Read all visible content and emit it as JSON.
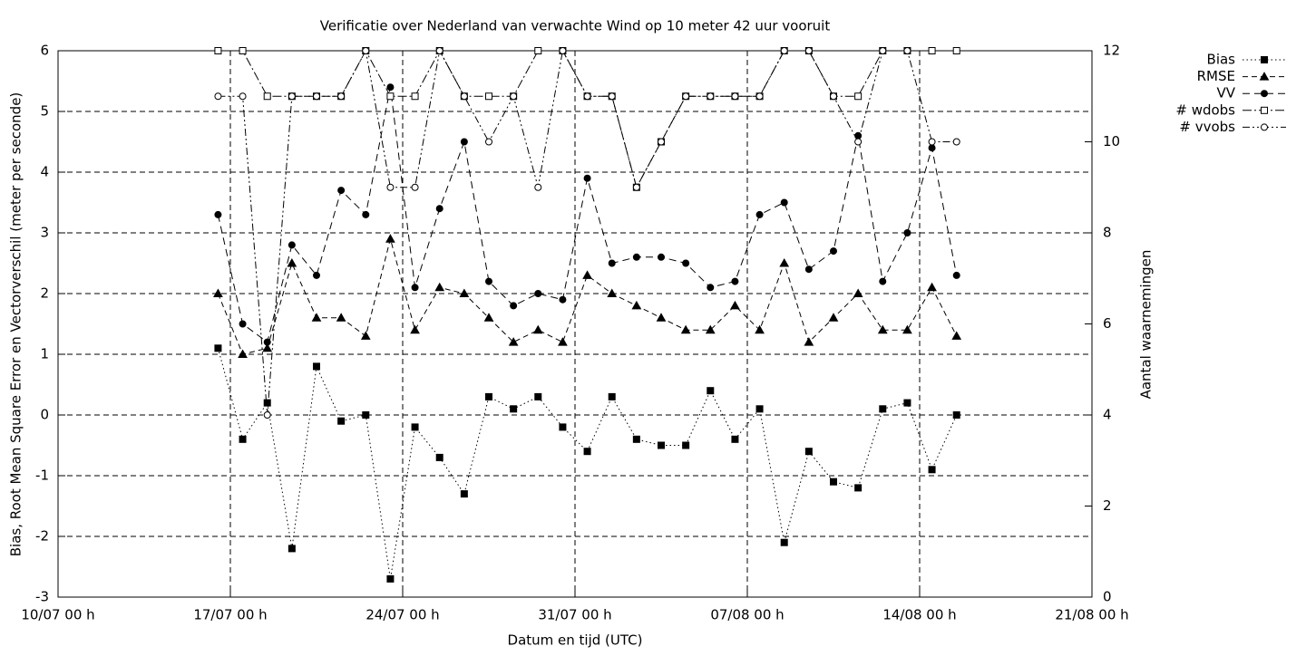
{
  "chart_data": {
    "type": "line",
    "title": "Verificatie over Nederland van verwachte Wind op 10 meter 42 uur vooruit",
    "xlabel": "Datum en tijd (UTC)",
    "ylabel": "Bias, Root Mean Square Error en Vectorverschil (meter per seconde)",
    "y2label": "Aantal waarnemingen",
    "x": [
      6.5,
      7.5,
      8.5,
      9.5,
      10.5,
      11.5,
      12.5,
      13.5,
      14.5,
      15.5,
      16.5,
      17.5,
      18.5,
      19.5,
      20.5,
      21.5,
      22.5,
      23.5,
      24.5,
      25.5,
      26.5,
      27.5,
      28.5,
      29.5,
      30.5,
      31.5,
      32.5,
      33.5,
      34.5,
      35.5,
      36.5
    ],
    "xlim": [
      0,
      42
    ],
    "xticks": [
      {
        "value": 0,
        "label": "10/07 00 h"
      },
      {
        "value": 7,
        "label": "17/07 00 h"
      },
      {
        "value": 14,
        "label": "24/07 00 h"
      },
      {
        "value": 21,
        "label": "31/07 00 h"
      },
      {
        "value": 28,
        "label": "07/08 00 h"
      },
      {
        "value": 35,
        "label": "14/08 00 h"
      },
      {
        "value": 42,
        "label": "21/08 00 h"
      }
    ],
    "ylim": [
      -3,
      6
    ],
    "yticks": [
      -3,
      -2,
      -1,
      0,
      1,
      2,
      3,
      4,
      5,
      6
    ],
    "y2lim": [
      0,
      12
    ],
    "y2ticks": [
      0,
      2,
      4,
      6,
      8,
      10,
      12
    ],
    "grid": true,
    "legend": "outside-top-right",
    "series": [
      {
        "name": "Bias",
        "color": "#000000",
        "dash": "1.5 3",
        "marker": "square-filled",
        "values": [
          1.1,
          -0.4,
          0.2,
          -2.2,
          0.8,
          -0.1,
          0.0,
          -2.7,
          -0.2,
          -0.7,
          -1.3,
          0.3,
          0.1,
          0.3,
          -0.2,
          -0.6,
          0.3,
          -0.4,
          -0.5,
          -0.5,
          0.4,
          -0.4,
          0.1,
          -2.1,
          -0.6,
          -1.1,
          -1.2,
          0.1,
          0.2,
          -0.9,
          0.0
        ]
      },
      {
        "name": "RMSE",
        "color": "#000000",
        "dash": "6 4",
        "marker": "triangle-filled",
        "values": [
          2.0,
          1.0,
          1.1,
          2.5,
          1.6,
          1.6,
          1.3,
          2.9,
          1.4,
          2.1,
          2.0,
          1.6,
          1.2,
          1.4,
          1.2,
          2.3,
          2.0,
          1.8,
          1.6,
          1.4,
          1.4,
          1.8,
          1.4,
          2.5,
          1.2,
          1.6,
          2.0,
          1.4,
          1.4,
          2.1,
          1.3
        ]
      },
      {
        "name": "VV",
        "color": "#000000",
        "dash": "8 5",
        "marker": "circle-filled",
        "values": [
          3.3,
          1.5,
          1.2,
          2.8,
          2.3,
          3.7,
          3.3,
          5.4,
          2.1,
          3.4,
          4.5,
          2.2,
          1.8,
          2.0,
          1.9,
          3.9,
          2.5,
          2.6,
          2.6,
          2.5,
          2.1,
          2.2,
          3.3,
          3.5,
          2.4,
          2.7,
          4.6,
          2.2,
          3.0,
          4.4,
          2.3
        ]
      },
      {
        "name": "# wdobs",
        "color": "#000000",
        "dash": "10 3 2 3",
        "marker": "square-open",
        "axis": "y2",
        "values": [
          12,
          12,
          11,
          11,
          11,
          11,
          12,
          11,
          11,
          12,
          11,
          11,
          11,
          12,
          12,
          11,
          11,
          9,
          10,
          11,
          11,
          11,
          11,
          12,
          12,
          11,
          11,
          12,
          12,
          12,
          12
        ]
      },
      {
        "name": "# vvobs",
        "color": "#000000",
        "dash": "8 3 2 3 2 3",
        "marker": "circle-open",
        "axis": "y2",
        "values": [
          11,
          11,
          4,
          11,
          11,
          11,
          12,
          9,
          9,
          12,
          11,
          10,
          11,
          9,
          12,
          11,
          11,
          9,
          10,
          11,
          11,
          11,
          11,
          12,
          12,
          11,
          10,
          12,
          12,
          10,
          10
        ]
      }
    ]
  }
}
